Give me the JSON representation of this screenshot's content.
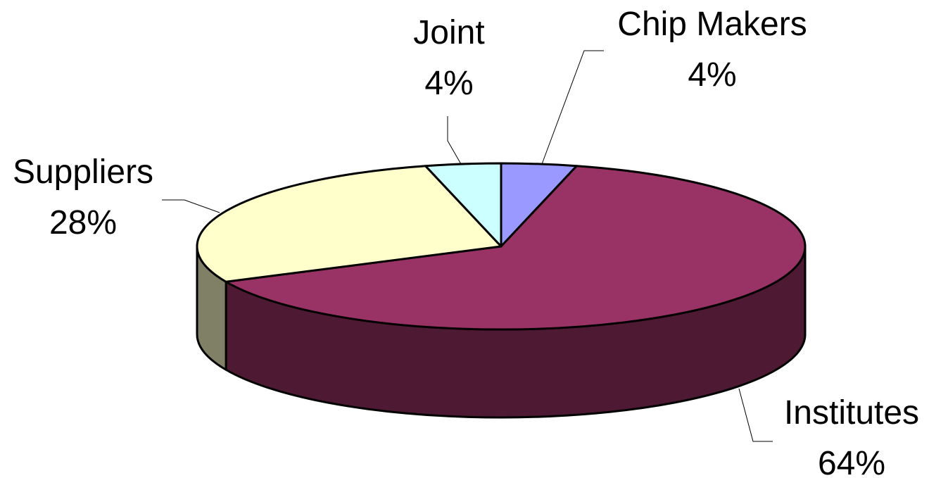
{
  "chart_data": {
    "type": "pie",
    "style": "3d",
    "slices": [
      {
        "label": "Chip Makers",
        "value": 4,
        "value_label": "4%",
        "color": "#9999FF"
      },
      {
        "label": "Institutes",
        "value": 64,
        "value_label": "64%",
        "color": "#993366"
      },
      {
        "label": "Suppliers",
        "value": 28,
        "value_label": "28%",
        "color": "#FFFFCC"
      },
      {
        "label": "Joint",
        "value": 4,
        "value_label": "4%",
        "color": "#CCFFFF"
      }
    ],
    "side_colors": {
      "Institutes": "#4D1933",
      "Suppliers": "#808066"
    }
  }
}
